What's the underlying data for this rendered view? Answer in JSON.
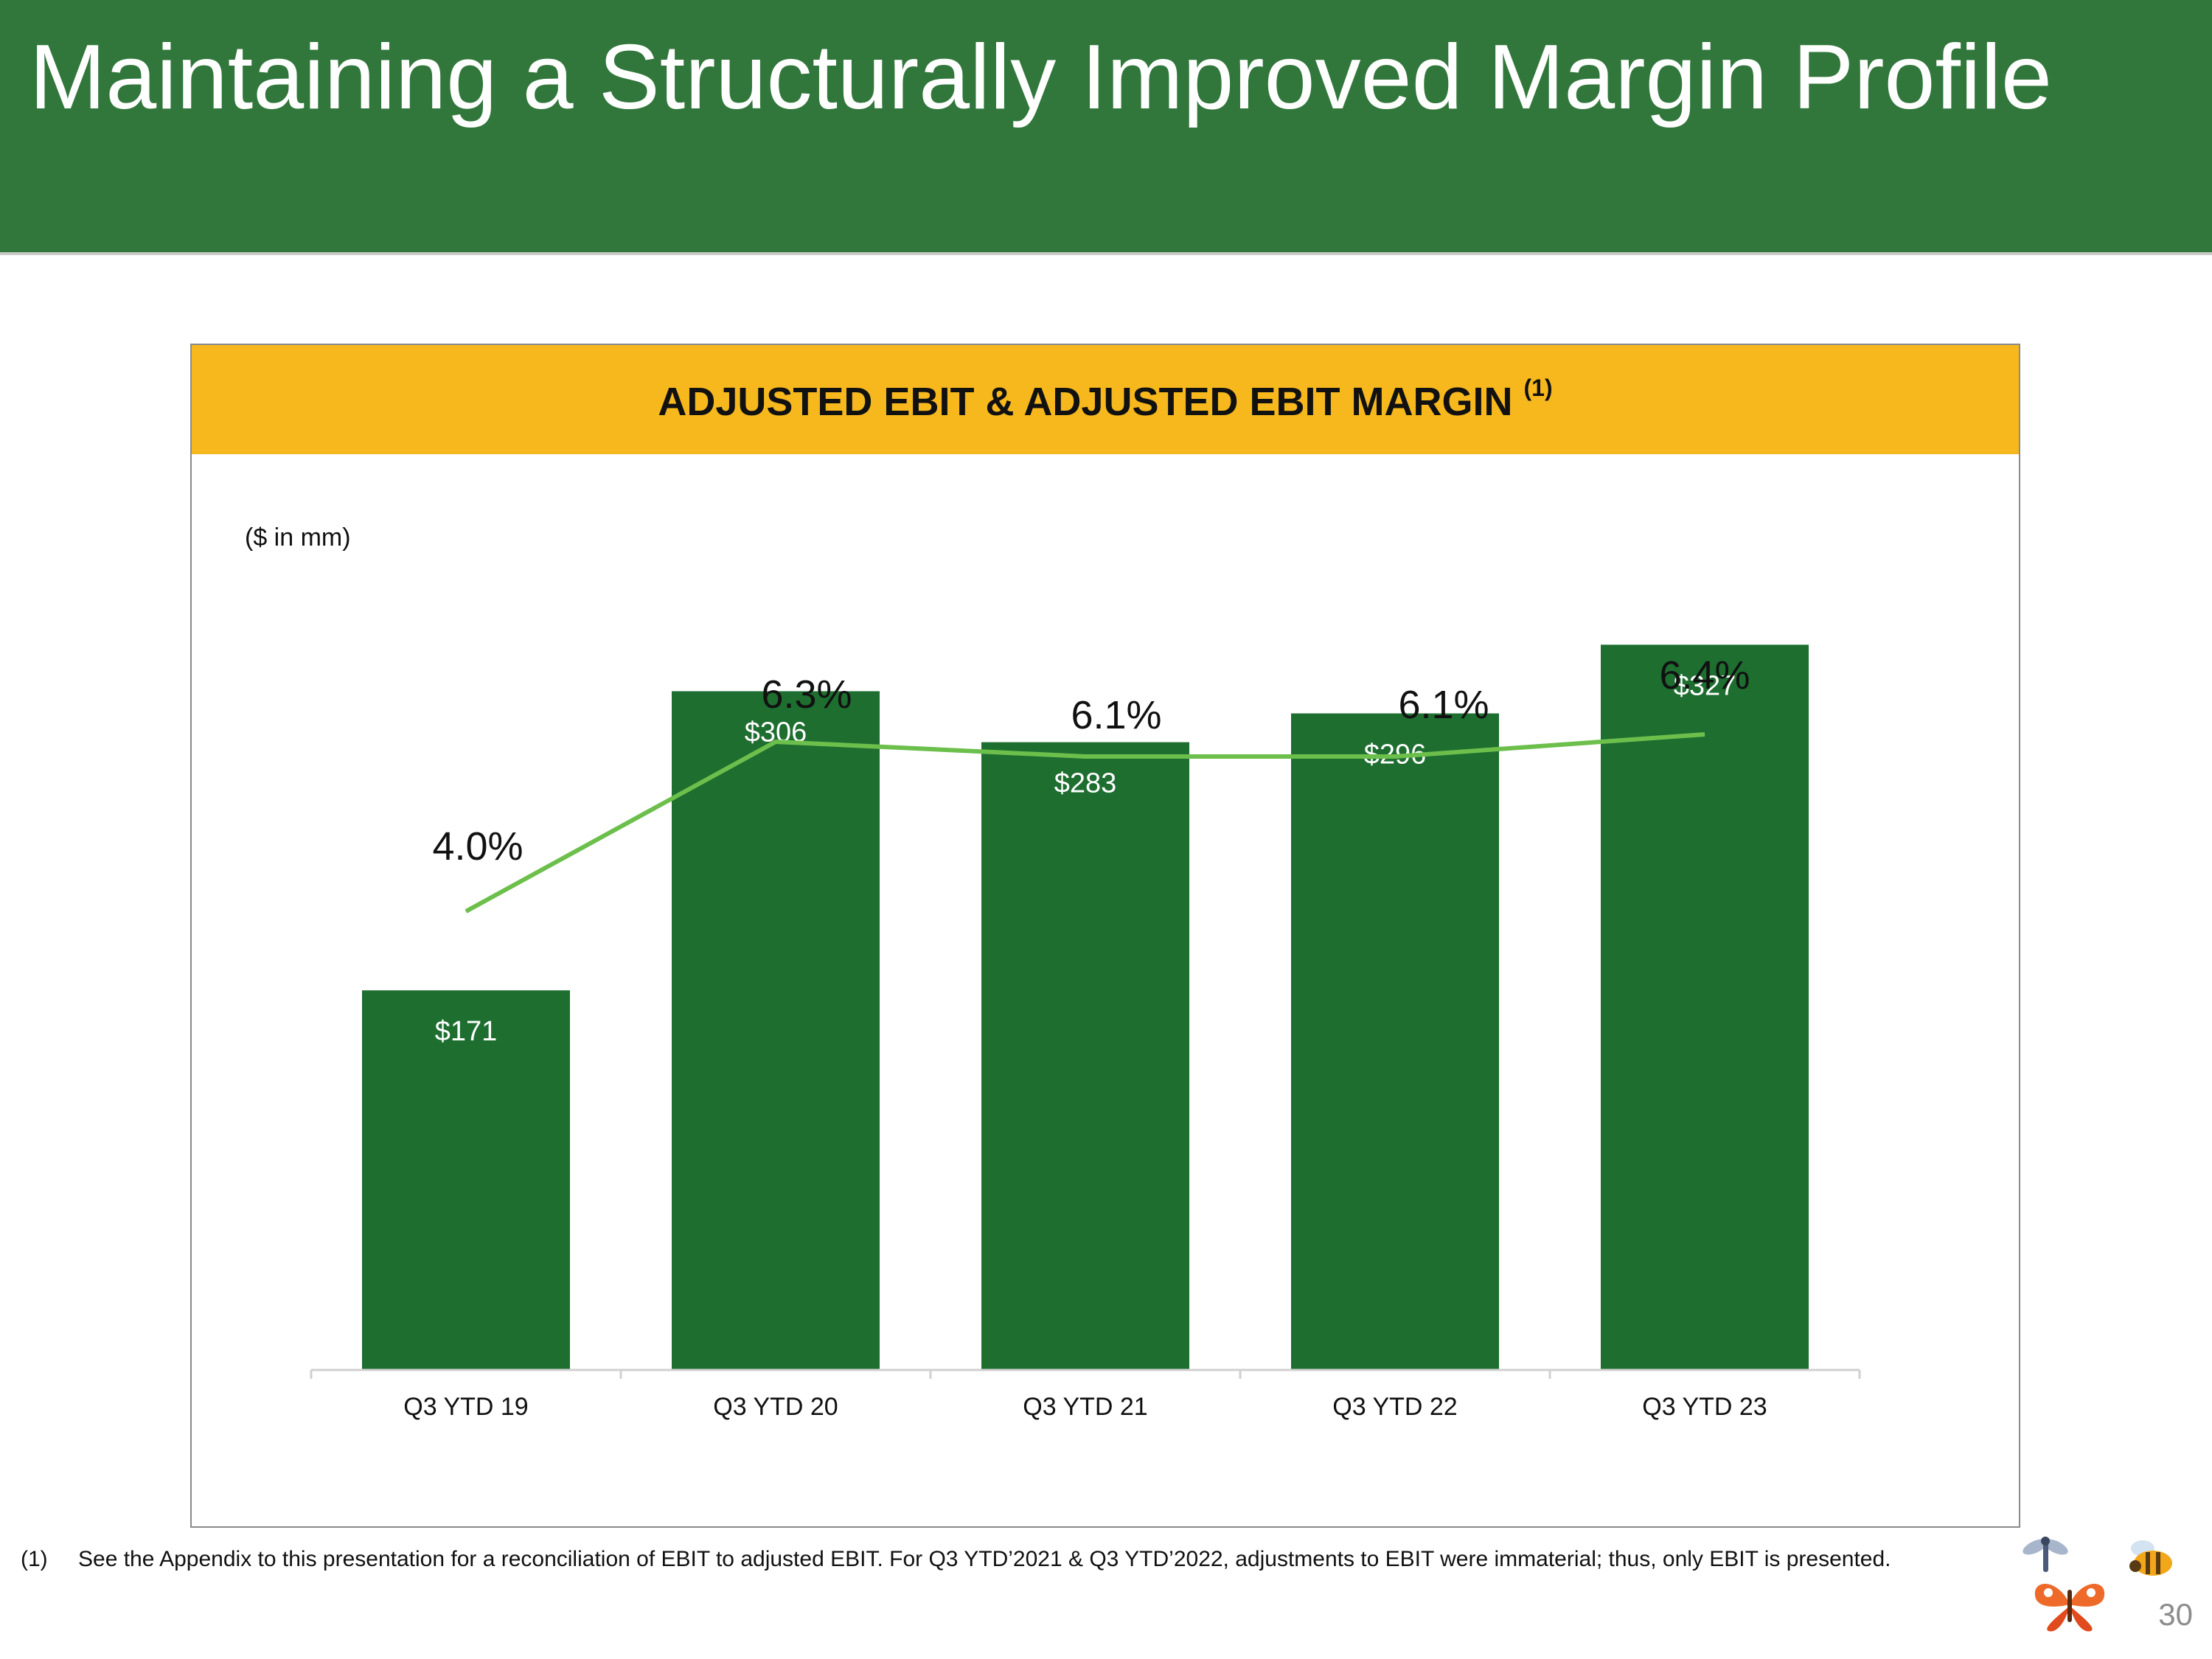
{
  "slide": {
    "title": "Maintaining a Structurally Improved Margin Profile",
    "page_number": "30"
  },
  "chart_panel": {
    "title": "ADJUSTED EBIT & ADJUSTED EBIT MARGIN",
    "title_footnote_marker": "(1)",
    "units_label": "($ in mm)"
  },
  "chart_data": {
    "type": "bar",
    "categories": [
      "Q3 YTD 19",
      "Q3 YTD 20",
      "Q3 YTD 21",
      "Q3 YTD 22",
      "Q3 YTD 23"
    ],
    "series": [
      {
        "values": [
          171,
          306,
          283,
          296,
          327
        ],
        "labels": [
          "$171",
          "$306",
          "$283",
          "$296",
          "$327"
        ],
        "color": "#1e6e30",
        "kind": "bar"
      },
      {
        "values": [
          4.0,
          6.3,
          6.1,
          6.1,
          6.4
        ],
        "labels": [
          "4.0%",
          "6.3%",
          "6.1%",
          "6.1%",
          "6.4%"
        ],
        "color": "#6cbf4b",
        "kind": "line",
        "axis": "secondary"
      }
    ],
    "ylim": [
      0,
      400
    ],
    "y2lim": [
      0,
      10
    ],
    "grid": false,
    "legend": "none"
  },
  "footnote": {
    "number": "(1)",
    "text": "See the Appendix to this presentation for a reconciliation of EBIT to adjusted EBIT.  For Q3 YTD’2021 & Q3 YTD’2022, adjustments to EBIT were immaterial; thus, only EBIT is presented."
  },
  "colors": {
    "header": "#31773b",
    "chart_band": "#f6b81d",
    "bar": "#1e6e30",
    "line": "#6cbf4b"
  },
  "decor_icons": [
    "dragonfly-icon",
    "butterfly-icon",
    "bee-icon"
  ]
}
